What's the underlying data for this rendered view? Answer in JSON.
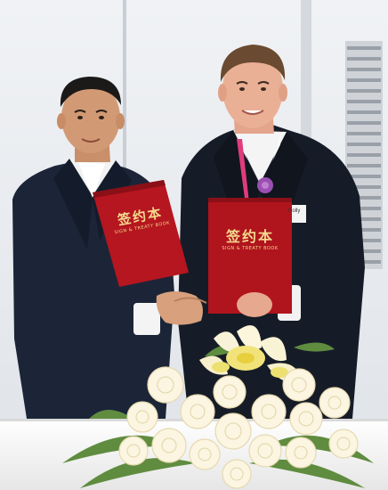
{
  "image": {
    "alt": "Two men in dark suits shaking hands while each holds a red signing folder, with a white and yellow flower arrangement in the foreground",
    "colors": {
      "wall": "#e8eaee",
      "suit_dark": "#1a2333",
      "folder_red": "#b0161f",
      "folder_text": "#f3d88e",
      "flower_white": "#fbf6e6",
      "lily_yellow": "#f0e070",
      "leaf_green": "#5e8a3e"
    }
  },
  "folders": {
    "left": {
      "title": "签约本",
      "subtitle": "SIGN & TREATY BOOK"
    },
    "right": {
      "title": "签约本",
      "subtitle": "SIGN & TREATY BOOK"
    }
  },
  "name_badge": {
    "text": "Holly"
  }
}
